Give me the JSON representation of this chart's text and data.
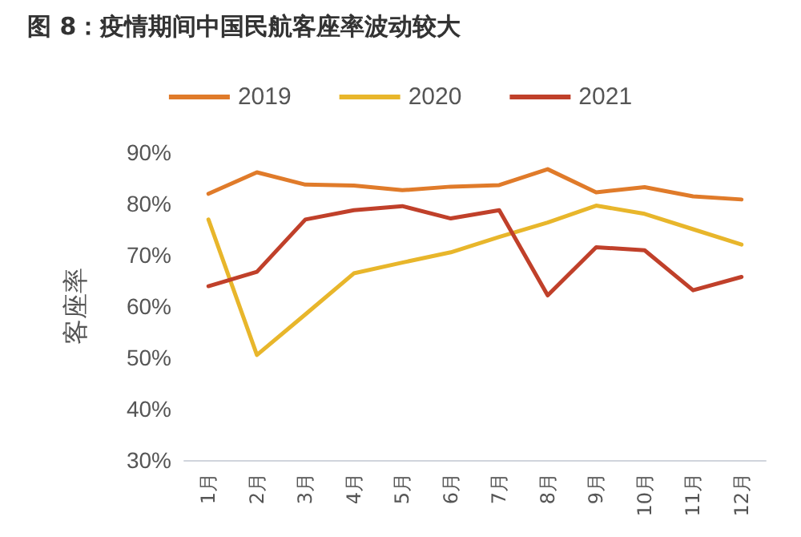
{
  "chart_data": {
    "type": "line",
    "title": "图 8：疫情期间中国民航客座率波动较大",
    "ylabel": "客座率",
    "categories": [
      "1月",
      "2月",
      "3月",
      "4月",
      "5月",
      "6月",
      "7月",
      "8月",
      "9月",
      "10月",
      "11月",
      "12月"
    ],
    "series": [
      {
        "name": "2019",
        "color": "#e07b2a",
        "values": [
          81.9,
          86.1,
          83.7,
          83.5,
          82.6,
          83.3,
          83.6,
          86.7,
          82.2,
          83.2,
          81.4,
          80.8
        ]
      },
      {
        "name": "2020",
        "color": "#e8b62b",
        "values": [
          76.9,
          50.5,
          58.4,
          66.4,
          68.5,
          70.5,
          73.5,
          76.3,
          79.6,
          78,
          75,
          72
        ]
      },
      {
        "name": "2021",
        "color": "#c0402a",
        "values": [
          63.9,
          66.7,
          76.9,
          78.7,
          79.5,
          77.1,
          78.7,
          62.1,
          71.5,
          70.9,
          63.1,
          65.7
        ]
      }
    ],
    "ylim": [
      30,
      90
    ],
    "yticks": [
      {
        "value": 30,
        "label": "30%"
      },
      {
        "value": 40,
        "label": "40%"
      },
      {
        "value": 50,
        "label": "50%"
      },
      {
        "value": 60,
        "label": "60%"
      },
      {
        "value": 70,
        "label": "70%"
      },
      {
        "value": 80,
        "label": "80%"
      },
      {
        "value": 90,
        "label": "90%"
      }
    ],
    "grid": false,
    "legend": "top",
    "marker": "none",
    "line_style": "solid"
  }
}
